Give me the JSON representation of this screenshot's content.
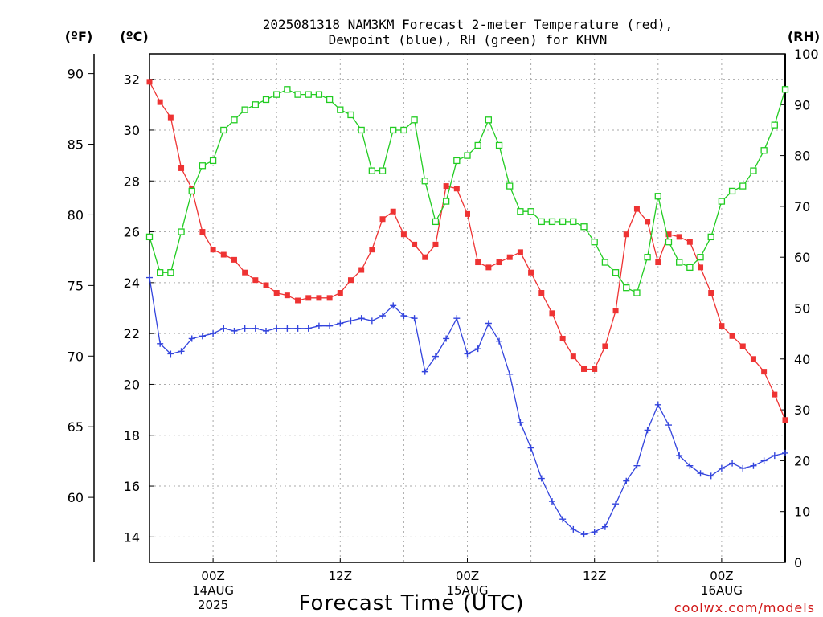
{
  "chart_data": {
    "type": "line",
    "title_line1": "2025081318 NAM3KM Forecast 2-meter Temperature (red),",
    "title_line2": "Dewpoint (blue), RH (green) for KHVN",
    "left_unit_f": "(ºF)",
    "left_unit_c": "(ºC)",
    "right_unit": "(RH)",
    "xlabel": "Forecast Time (UTC)",
    "credit": "coolwx.com/models",
    "fahrenheit_ticks": [
      60,
      65,
      70,
      75,
      80,
      85,
      90
    ],
    "celsius_ticks": [
      14,
      16,
      18,
      20,
      22,
      24,
      26,
      28,
      30,
      32
    ],
    "rh_ticks": [
      0,
      10,
      20,
      30,
      40,
      50,
      60,
      70,
      80,
      90,
      100
    ],
    "ylim_celsius": [
      13,
      33
    ],
    "ylim_rh": [
      0,
      100
    ],
    "x_hours_start": 18,
    "x_hours_end": 78,
    "x_tick_hours": [
      24,
      36,
      48,
      60,
      72
    ],
    "x_ticks": [
      {
        "hour": 24,
        "line1": "00Z",
        "line2": "14AUG",
        "line3": "2025"
      },
      {
        "hour": 36,
        "line1": "12Z",
        "line2": "",
        "line3": ""
      },
      {
        "hour": 48,
        "line1": "00Z",
        "line2": "15AUG",
        "line3": ""
      },
      {
        "hour": 60,
        "line1": "12Z",
        "line2": "",
        "line3": ""
      },
      {
        "hour": 72,
        "line1": "00Z",
        "line2": "16AUG",
        "line3": ""
      }
    ],
    "colors": {
      "temperature": "#ee3333",
      "dewpoint": "#3344dd",
      "rh": "#22cc22",
      "grid": "#aaaaaa"
    },
    "series": [
      {
        "name": "Temperature",
        "unit": "C",
        "values": [
          31.9,
          31.1,
          30.5,
          28.5,
          27.7,
          26.0,
          25.3,
          25.1,
          24.9,
          24.4,
          24.1,
          23.9,
          23.6,
          23.5,
          23.3,
          23.4,
          23.4,
          23.4,
          23.6,
          24.1,
          24.5,
          25.3,
          26.5,
          26.8,
          25.9,
          25.5,
          25.0,
          25.5,
          27.8,
          27.7,
          26.7,
          24.8,
          24.6,
          24.8,
          25.0,
          25.2,
          24.4,
          23.6,
          22.8,
          21.8,
          21.1,
          20.6,
          20.6,
          21.5,
          22.9,
          25.9,
          26.9,
          26.4,
          24.8,
          25.9,
          25.8,
          25.6,
          24.6,
          23.6,
          22.3,
          21.9,
          21.5,
          21.0,
          20.5,
          19.6,
          18.6
        ]
      },
      {
        "name": "Dewpoint",
        "unit": "C",
        "values": [
          24.2,
          21.6,
          21.2,
          21.3,
          21.8,
          21.9,
          22.0,
          22.2,
          22.1,
          22.2,
          22.2,
          22.1,
          22.2,
          22.2,
          22.2,
          22.2,
          22.3,
          22.3,
          22.4,
          22.5,
          22.6,
          22.5,
          22.7,
          23.1,
          22.7,
          22.6,
          20.5,
          21.1,
          21.8,
          22.6,
          21.2,
          21.4,
          22.4,
          21.7,
          20.4,
          18.5,
          17.5,
          16.3,
          15.4,
          14.7,
          14.3,
          14.1,
          14.2,
          14.4,
          15.3,
          16.2,
          16.8,
          18.2,
          19.2,
          18.4,
          17.2,
          16.8,
          16.5,
          16.4,
          16.7,
          16.9,
          16.7,
          16.8,
          17.0,
          17.2,
          17.3
        ]
      },
      {
        "name": "RH",
        "unit": "%",
        "values": [
          64,
          57,
          57,
          65,
          73,
          78,
          79,
          85,
          87,
          89,
          90,
          91,
          92,
          93,
          92,
          92,
          92,
          91,
          89,
          88,
          85,
          77,
          77,
          85,
          85,
          87,
          75,
          67,
          71,
          79,
          80,
          82,
          87,
          82,
          74,
          69,
          69,
          67,
          67,
          67,
          67,
          66,
          63,
          59,
          57,
          54,
          53,
          60,
          72,
          63,
          59,
          58,
          60,
          64,
          71,
          73,
          74,
          77,
          81,
          86,
          93
        ]
      }
    ]
  }
}
